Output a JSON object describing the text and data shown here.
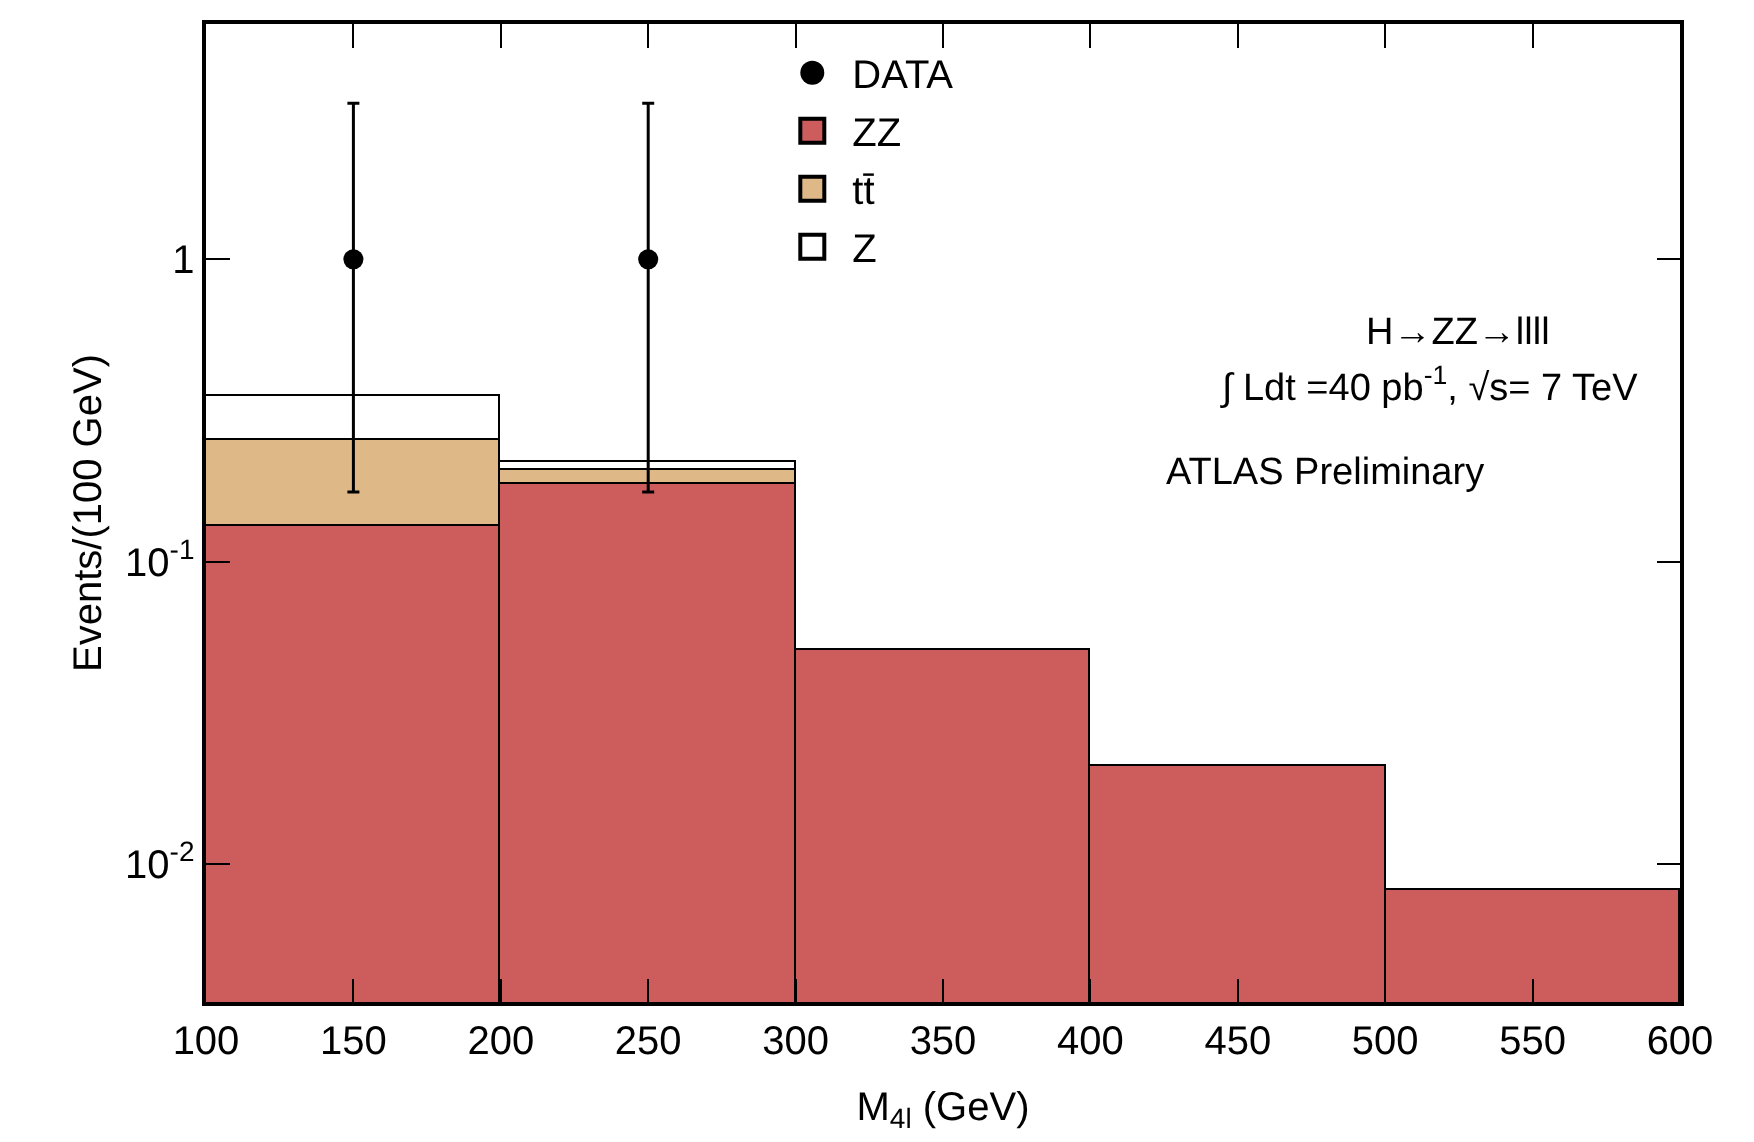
{
  "chart_data": {
    "type": "bar",
    "stacked": true,
    "x": [
      150,
      250,
      350,
      450,
      550
    ],
    "series": [
      {
        "name": "ZZ",
        "color": "#cd5c5c",
        "values": [
          0.131,
          0.182,
          0.0508,
          0.0212,
          0.0082
        ]
      },
      {
        "name": "tt̄",
        "color": "#deb887",
        "values": [
          0.123,
          0.018,
          null,
          null,
          null
        ]
      },
      {
        "name": "Z",
        "color": "#ffffff",
        "values": [
          0.1,
          0.015,
          null,
          null,
          null
        ]
      },
      {
        "name": "DATA",
        "type": "scatter",
        "color": "#000000",
        "marker": "circle",
        "x": [
          150,
          250
        ],
        "values": [
          1,
          1
        ],
        "errors": [
          [
            0.17,
            3.28
          ],
          [
            0.17,
            3.28
          ]
        ]
      }
    ],
    "xlabel": "M$_{4l}$ (GeV)",
    "ylabel": "Events/(100 GeV)",
    "xlim": [
      100,
      600
    ],
    "xticks": [
      100,
      150,
      200,
      250,
      300,
      350,
      400,
      450,
      500,
      550,
      600
    ],
    "ylim": [
      0.0035,
      6
    ],
    "log": true,
    "yticks": [
      {
        "value": 0.01,
        "label": "10$^{-2}$"
      },
      {
        "value": 0.1,
        "label": "10$^{-1}$"
      },
      1
    ],
    "legend": "top",
    "annotations": [
      "H→ZZ→llll",
      "∫ Ldt =40 pb$^{-1}$, √s= 7 TeV",
      "ATLAS Preliminary"
    ]
  }
}
